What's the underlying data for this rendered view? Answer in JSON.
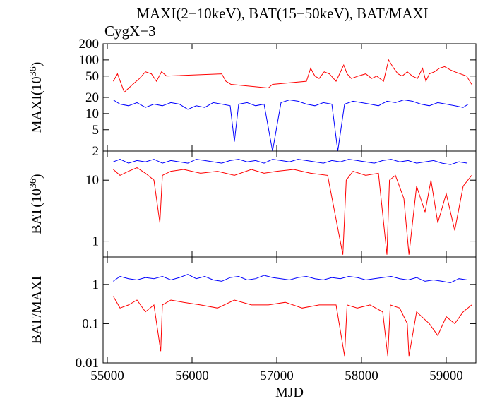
{
  "title": "MAXI(2−10keV), BAT(15−50keV), BAT/MAXI",
  "subtitle": "CygX−3",
  "chart_data": [
    {
      "type": "line",
      "panel": "top",
      "ylabel_base": "MAXI(10",
      "ylabel_exp": "36",
      "ylabel_end": ")",
      "yscale": "log",
      "ylim": [
        2,
        200
      ],
      "yticks": [
        "2",
        "5",
        "10",
        "20",
        "50",
        "100",
        "200"
      ],
      "series": [
        {
          "color": "#ff0000",
          "x": [
            55070,
            55120,
            55200,
            55300,
            55380,
            55450,
            55520,
            55580,
            55640,
            55700,
            56350,
            56400,
            56460,
            56900,
            56950,
            57350,
            57400,
            57450,
            57500,
            57560,
            57620,
            57700,
            57790,
            57830,
            57880,
            57960,
            58050,
            58120,
            58180,
            58260,
            58320,
            58380,
            58430,
            58480,
            58540,
            58600,
            58660,
            58720,
            58760,
            58800,
            58860,
            58920,
            58980,
            59050,
            59100,
            59240,
            59300
          ],
          "values": [
            40,
            55,
            25,
            35,
            45,
            60,
            55,
            40,
            60,
            50,
            55,
            40,
            35,
            30,
            35,
            40,
            70,
            50,
            45,
            60,
            55,
            40,
            80,
            55,
            45,
            50,
            55,
            45,
            50,
            40,
            100,
            70,
            55,
            50,
            60,
            50,
            45,
            70,
            40,
            55,
            60,
            70,
            75,
            65,
            60,
            50,
            35
          ]
        },
        {
          "color": "#0000ff",
          "x": [
            55070,
            55150,
            55250,
            55350,
            55450,
            55550,
            55650,
            55750,
            55850,
            55950,
            56050,
            56150,
            56250,
            56350,
            56450,
            56500,
            56550,
            56650,
            56750,
            56850,
            56950,
            57050,
            57150,
            57250,
            57350,
            57450,
            57550,
            57650,
            57720,
            57800,
            57900,
            58000,
            58100,
            58200,
            58300,
            58400,
            58500,
            58600,
            58700,
            58800,
            58900,
            59000,
            59100,
            59200,
            59260
          ],
          "values": [
            18,
            15,
            14,
            16,
            13,
            15,
            14,
            16,
            15,
            12,
            14,
            13,
            16,
            15,
            14,
            3,
            15,
            16,
            14,
            15,
            2,
            16,
            18,
            17,
            15,
            14,
            16,
            15,
            2,
            15,
            17,
            16,
            15,
            14,
            17,
            16,
            18,
            17,
            15,
            14,
            16,
            15,
            14,
            13,
            15
          ]
        }
      ]
    },
    {
      "type": "line",
      "panel": "middle",
      "ylabel_base": "BAT(10",
      "ylabel_exp": "36",
      "ylabel_end": ")",
      "yscale": "log",
      "ylim": [
        0.55,
        30
      ],
      "yticks": [
        "1",
        "10"
      ],
      "series": [
        {
          "color": "#ff0000",
          "x": [
            55070,
            55150,
            55250,
            55350,
            55450,
            55550,
            55620,
            55650,
            55750,
            55900,
            56100,
            56300,
            56500,
            56700,
            56850,
            57000,
            57200,
            57400,
            57600,
            57780,
            57820,
            57900,
            58050,
            58200,
            58300,
            58330,
            58400,
            58500,
            58560,
            58650,
            58750,
            58820,
            58900,
            59000,
            59100,
            59200,
            59300
          ],
          "values": [
            15,
            12,
            14,
            16,
            13,
            10,
            2,
            12,
            14,
            15,
            13,
            14,
            12,
            15,
            13,
            14,
            15,
            13,
            12,
            0.6,
            10,
            14,
            12,
            13,
            0.6,
            10,
            12,
            5,
            0.6,
            8,
            3,
            10,
            2,
            6,
            1.5,
            8,
            12
          ]
        },
        {
          "color": "#0000ff",
          "x": [
            55070,
            55150,
            55250,
            55350,
            55450,
            55550,
            55650,
            55750,
            55850,
            55950,
            56050,
            56150,
            56250,
            56350,
            56450,
            56550,
            56650,
            56750,
            56850,
            56950,
            57050,
            57150,
            57250,
            57350,
            57450,
            57550,
            57650,
            57750,
            57850,
            57950,
            58050,
            58150,
            58250,
            58350,
            58450,
            58550,
            58650,
            58750,
            58850,
            58950,
            59050,
            59150,
            59250
          ],
          "values": [
            20,
            22,
            19,
            21,
            20,
            22,
            19,
            21,
            20,
            19,
            22,
            21,
            20,
            19,
            21,
            22,
            20,
            21,
            19,
            22,
            21,
            20,
            22,
            21,
            20,
            19,
            21,
            20,
            22,
            21,
            20,
            19,
            21,
            22,
            20,
            21,
            19,
            20,
            21,
            19,
            18,
            20,
            19
          ]
        }
      ]
    },
    {
      "type": "line",
      "panel": "bottom",
      "ylabel": "BAT/MAXI",
      "xlabel": "MJD",
      "yscale": "log",
      "ylim": [
        0.01,
        5
      ],
      "yticks": [
        "0.01",
        "0.1",
        "1"
      ],
      "xlim": [
        54950,
        59350
      ],
      "xticks": [
        "55000",
        "56000",
        "57000",
        "58000",
        "59000"
      ],
      "series": [
        {
          "color": "#ff0000",
          "x": [
            55070,
            55150,
            55250,
            55350,
            55450,
            55550,
            55630,
            55650,
            55750,
            55900,
            56100,
            56300,
            56500,
            56700,
            56900,
            57100,
            57300,
            57500,
            57700,
            57800,
            57830,
            57950,
            58100,
            58250,
            58310,
            58340,
            58450,
            58540,
            58560,
            58650,
            58800,
            58900,
            59000,
            59100,
            59200,
            59300
          ],
          "values": [
            0.5,
            0.25,
            0.3,
            0.4,
            0.2,
            0.3,
            0.02,
            0.3,
            0.4,
            0.35,
            0.3,
            0.25,
            0.4,
            0.3,
            0.3,
            0.35,
            0.25,
            0.3,
            0.3,
            0.015,
            0.3,
            0.25,
            0.3,
            0.2,
            0.015,
            0.3,
            0.25,
            0.1,
            0.015,
            0.2,
            0.1,
            0.05,
            0.15,
            0.1,
            0.2,
            0.3
          ]
        },
        {
          "color": "#0000ff",
          "x": [
            55070,
            55150,
            55250,
            55350,
            55450,
            55550,
            55650,
            55750,
            55850,
            55950,
            56050,
            56150,
            56250,
            56350,
            56450,
            56550,
            56650,
            56750,
            56850,
            56950,
            57050,
            57150,
            57250,
            57350,
            57450,
            57550,
            57650,
            57750,
            57850,
            57950,
            58050,
            58150,
            58250,
            58350,
            58450,
            58550,
            58650,
            58750,
            58850,
            58950,
            59050,
            59150,
            59250
          ],
          "values": [
            1.2,
            1.6,
            1.4,
            1.3,
            1.5,
            1.4,
            1.6,
            1.3,
            1.5,
            1.8,
            1.4,
            1.6,
            1.3,
            1.2,
            1.5,
            1.6,
            1.3,
            1.4,
            1.7,
            1.5,
            1.4,
            1.3,
            1.5,
            1.6,
            1.4,
            1.3,
            1.5,
            1.4,
            1.6,
            1.5,
            1.3,
            1.4,
            1.5,
            1.6,
            1.4,
            1.3,
            1.5,
            1.2,
            1.3,
            1.2,
            1.1,
            1.4,
            1.3
          ]
        }
      ]
    }
  ]
}
